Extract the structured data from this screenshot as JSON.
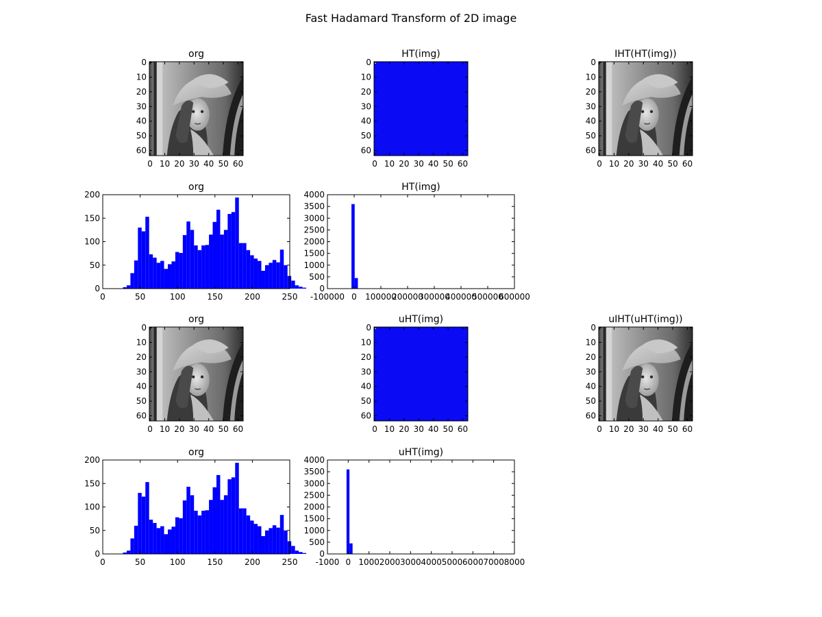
{
  "figure": {
    "title": "Fast Hadamard Transform of 2D image"
  },
  "image_ticks": [
    "0",
    "10",
    "20",
    "30",
    "40",
    "50",
    "60"
  ],
  "image_axes": [
    {
      "id": "img-org-1",
      "title": "org",
      "kind": "lena"
    },
    {
      "id": "img-ht",
      "title": "HT(img)",
      "kind": "blue"
    },
    {
      "id": "img-iht",
      "title": "IHT(HT(img))",
      "kind": "lena"
    },
    {
      "id": "img-org-2",
      "title": "org",
      "kind": "lena"
    },
    {
      "id": "img-uht",
      "title": "uHT(img)",
      "kind": "blue"
    },
    {
      "id": "img-uiht",
      "title": "uIHT(uHT(img))",
      "kind": "lena"
    }
  ],
  "chart_data": [
    {
      "id": "hist-org-1",
      "type": "bar",
      "title": "org",
      "xlim": [
        0,
        250
      ],
      "ylim": [
        0,
        200
      ],
      "xticks": [
        0,
        50,
        100,
        150,
        200,
        250
      ],
      "yticks": [
        0,
        50,
        100,
        150,
        200
      ],
      "bin_width": 5,
      "bin_start": 27,
      "values": [
        3,
        7,
        33,
        60,
        130,
        122,
        153,
        73,
        66,
        55,
        59,
        42,
        52,
        58,
        78,
        76,
        114,
        143,
        125,
        92,
        82,
        92,
        93,
        115,
        142,
        168,
        115,
        125,
        159,
        163,
        194,
        97,
        97,
        82,
        71,
        64,
        59,
        38,
        50,
        55,
        61,
        56,
        83,
        50,
        27,
        17,
        7,
        4,
        2
      ]
    },
    {
      "id": "hist-ht",
      "type": "bar",
      "title": "HT(img)",
      "xlim": [
        -100000,
        600000
      ],
      "ylim": [
        0,
        4000
      ],
      "xticks": [
        -100000,
        0,
        100000,
        200000,
        300000,
        400000,
        500000,
        600000
      ],
      "yticks": [
        0,
        500,
        1000,
        1500,
        2000,
        2500,
        3000,
        3500,
        4000
      ],
      "bars": [
        {
          "x0": -10000,
          "x1": 2000,
          "value": 3600
        },
        {
          "x0": 2000,
          "x1": 14000,
          "value": 450
        }
      ]
    },
    {
      "id": "hist-org-2",
      "type": "bar",
      "title": "org",
      "xlim": [
        0,
        250
      ],
      "ylim": [
        0,
        200
      ],
      "xticks": [
        0,
        50,
        100,
        150,
        200,
        250
      ],
      "yticks": [
        0,
        50,
        100,
        150,
        200
      ],
      "bin_width": 5,
      "bin_start": 27,
      "values": [
        3,
        7,
        33,
        60,
        130,
        122,
        153,
        73,
        66,
        55,
        59,
        42,
        52,
        58,
        78,
        76,
        114,
        143,
        125,
        92,
        82,
        92,
        93,
        115,
        142,
        168,
        115,
        125,
        159,
        163,
        194,
        97,
        97,
        82,
        71,
        64,
        59,
        38,
        50,
        55,
        61,
        56,
        83,
        50,
        27,
        17,
        7,
        4,
        2
      ]
    },
    {
      "id": "hist-uht",
      "type": "bar",
      "title": "uHT(img)",
      "xlim": [
        -1000,
        8000
      ],
      "ylim": [
        0,
        4000
      ],
      "xticks": [
        -1000,
        0,
        1000,
        2000,
        3000,
        4000,
        5000,
        6000,
        7000,
        8000
      ],
      "yticks": [
        0,
        500,
        1000,
        1500,
        2000,
        2500,
        3000,
        3500,
        4000
      ],
      "bars": [
        {
          "x0": -80,
          "x1": 60,
          "value": 3600
        },
        {
          "x0": 60,
          "x1": 210,
          "value": 450
        }
      ]
    }
  ],
  "colors": {
    "bar": "#0000ff",
    "axis": "#000000",
    "ht_image": "#0a0af5"
  }
}
